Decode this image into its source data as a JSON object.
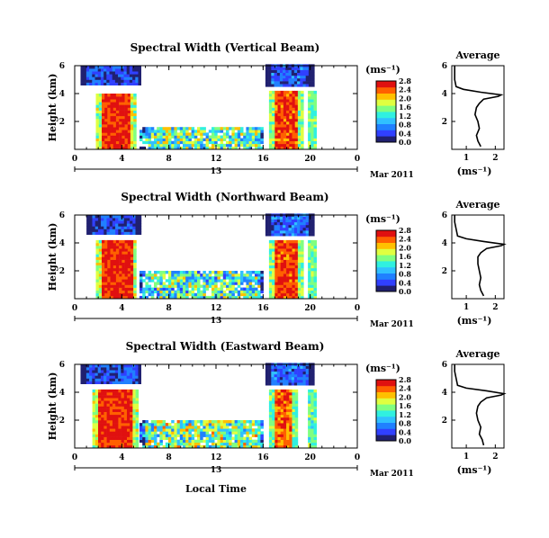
{
  "figure": {
    "xlabel": "Local Time",
    "date_text": "Mar 2011",
    "day_label": "13",
    "colorbar_unit": "(ms⁻¹)",
    "avg_title": "Average",
    "avg_unit": "(ms⁻¹)"
  },
  "colors": {
    "colormap": [
      "#202070",
      "#3040ff",
      "#2080ff",
      "#30c0ff",
      "#30f0e0",
      "#80ff80",
      "#e0ff40",
      "#ffc000",
      "#ff6000",
      "#e01010"
    ],
    "missing": "#ffffff"
  },
  "chart_data": [
    {
      "type": "heatmap",
      "title": "Spectral Width (Vertical Beam)",
      "ylabel": "Height (km)",
      "x_ticks": [
        "0",
        "4",
        "8",
        "12",
        "16",
        "20",
        "0"
      ],
      "y_ticks": [
        "2",
        "4",
        "6"
      ],
      "xlim": [
        0,
        24
      ],
      "ylim": [
        0,
        6
      ],
      "colorbar_ticks": [
        "0.0",
        "0.4",
        "0.8",
        "1.2",
        "1.6",
        "2.0",
        "2.4",
        "2.8"
      ],
      "colorbar_range": [
        0,
        2.8
      ],
      "regions": [
        {
          "x": [
            0.5,
            5.5
          ],
          "y": [
            4.6,
            6.0
          ],
          "value": 0.45,
          "note": "upper low-width band"
        },
        {
          "x": [
            1.8,
            5.0
          ],
          "y": [
            0,
            4.0
          ],
          "value": 2.6,
          "note": "high-width convective column"
        },
        {
          "x": [
            16.2,
            20.2
          ],
          "y": [
            4.5,
            6.0
          ],
          "value": 0.55
        },
        {
          "x": [
            16.5,
            19.2
          ],
          "y": [
            0,
            4.1
          ],
          "value": 2.5
        },
        {
          "x": [
            19.8,
            20.3
          ],
          "y": [
            0,
            4.2
          ],
          "value": 2.4
        },
        {
          "x": [
            5.5,
            16.0
          ],
          "y": [
            0,
            1.5
          ],
          "value": 1.4
        }
      ],
      "average_profile": {
        "xlabel": "(ms⁻¹)",
        "x_ticks": [
          "1",
          "2"
        ],
        "y_ticks": [
          "2",
          "4",
          "6"
        ],
        "xlim": [
          0.5,
          2.3
        ],
        "ylim": [
          0,
          6
        ],
        "height_km": [
          0.2,
          0.6,
          1.0,
          1.5,
          2.0,
          2.5,
          3.0,
          3.3,
          3.6,
          3.8,
          3.9,
          4.1,
          4.3,
          4.5,
          5.0,
          5.5,
          6.0
        ],
        "width": [
          1.5,
          1.4,
          1.35,
          1.45,
          1.4,
          1.3,
          1.35,
          1.45,
          1.6,
          2.1,
          2.2,
          1.5,
          0.9,
          0.65,
          0.6,
          0.6,
          0.6
        ]
      }
    },
    {
      "type": "heatmap",
      "title": "Spectral Width (Northward Beam)",
      "ylabel": "Height (km)",
      "x_ticks": [
        "0",
        "4",
        "8",
        "12",
        "16",
        "20",
        "0"
      ],
      "y_ticks": [
        "2",
        "4",
        "6"
      ],
      "xlim": [
        0,
        24
      ],
      "ylim": [
        0,
        6
      ],
      "colorbar_ticks": [
        "0.0",
        "0.4",
        "0.8",
        "1.2",
        "1.6",
        "2.0",
        "2.4",
        "2.8"
      ],
      "colorbar_range": [
        0,
        2.8
      ],
      "regions": [
        {
          "x": [
            1.0,
            5.5
          ],
          "y": [
            4.6,
            6.0
          ],
          "value": 0.45
        },
        {
          "x": [
            1.8,
            5.2
          ],
          "y": [
            0,
            4.1
          ],
          "value": 2.6
        },
        {
          "x": [
            16.2,
            20.2
          ],
          "y": [
            4.5,
            6.0
          ],
          "value": 0.55
        },
        {
          "x": [
            16.5,
            19.2
          ],
          "y": [
            0,
            4.1
          ],
          "value": 2.5
        },
        {
          "x": [
            19.8,
            20.3
          ],
          "y": [
            0,
            4.2
          ],
          "value": 2.4
        },
        {
          "x": [
            5.5,
            16.0
          ],
          "y": [
            0,
            1.8
          ],
          "value": 1.3
        }
      ],
      "average_profile": {
        "xlabel": "(ms⁻¹)",
        "x_ticks": [
          "1",
          "2"
        ],
        "y_ticks": [
          "2",
          "4",
          "6"
        ],
        "xlim": [
          0.5,
          2.3
        ],
        "ylim": [
          0,
          6
        ],
        "height_km": [
          0.2,
          0.6,
          1.0,
          1.5,
          2.0,
          2.5,
          3.0,
          3.3,
          3.6,
          3.8,
          3.9,
          4.1,
          4.3,
          4.5,
          5.0,
          5.5,
          6.0
        ],
        "width": [
          1.6,
          1.5,
          1.45,
          1.5,
          1.45,
          1.4,
          1.4,
          1.5,
          1.7,
          2.2,
          2.3,
          1.6,
          1.0,
          0.7,
          0.65,
          0.6,
          0.6
        ]
      }
    },
    {
      "type": "heatmap",
      "title": "Spectral Width (Eastward Beam)",
      "ylabel": "Height (km)",
      "x_ticks": [
        "0",
        "4",
        "8",
        "12",
        "16",
        "20",
        "0"
      ],
      "y_ticks": [
        "2",
        "4",
        "6"
      ],
      "xlim": [
        0,
        24
      ],
      "ylim": [
        0,
        6
      ],
      "colorbar_ticks": [
        "0.0",
        "0.4",
        "0.8",
        "1.2",
        "1.6",
        "2.0",
        "2.4",
        "2.8"
      ],
      "colorbar_range": [
        0,
        2.8
      ],
      "regions": [
        {
          "x": [
            0.5,
            5.5
          ],
          "y": [
            4.6,
            6.0
          ],
          "value": 0.45
        },
        {
          "x": [
            1.5,
            5.2
          ],
          "y": [
            0,
            4.2
          ],
          "value": 2.6
        },
        {
          "x": [
            16.2,
            20.2
          ],
          "y": [
            4.5,
            6.0
          ],
          "value": 0.55
        },
        {
          "x": [
            16.5,
            18.8
          ],
          "y": [
            0,
            4.2
          ],
          "value": 2.4
        },
        {
          "x": [
            19.8,
            20.3
          ],
          "y": [
            0,
            4.2
          ],
          "value": 2.3
        },
        {
          "x": [
            5.5,
            16.0
          ],
          "y": [
            0,
            1.9
          ],
          "value": 1.5
        }
      ],
      "average_profile": {
        "xlabel": "(ms⁻¹)",
        "x_ticks": [
          "1",
          "2"
        ],
        "y_ticks": [
          "2",
          "4",
          "6"
        ],
        "xlim": [
          0.5,
          2.3
        ],
        "ylim": [
          0,
          6
        ],
        "height_km": [
          0.2,
          0.6,
          1.0,
          1.5,
          2.0,
          2.5,
          3.0,
          3.3,
          3.6,
          3.8,
          3.9,
          4.1,
          4.3,
          4.5,
          5.0,
          5.5,
          6.0
        ],
        "width": [
          1.6,
          1.55,
          1.45,
          1.5,
          1.4,
          1.35,
          1.4,
          1.5,
          1.7,
          2.2,
          2.3,
          1.7,
          1.0,
          0.7,
          0.65,
          0.6,
          0.6
        ]
      }
    }
  ]
}
